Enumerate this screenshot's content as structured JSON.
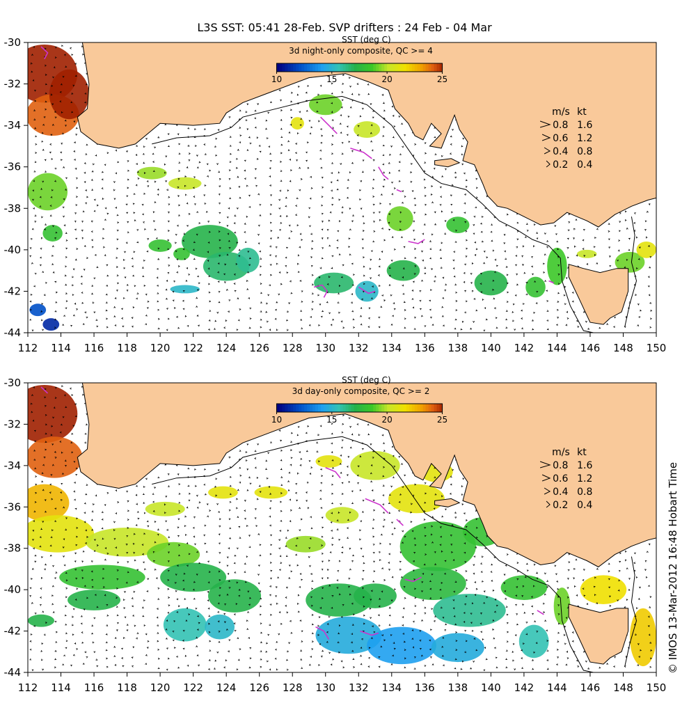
{
  "title": "L3S SST: 05:41 28-Feb. SVP drifters : 24 Feb - 04 Mar",
  "credit": "© IMOS 13-Mar-2012 16:48 Hobart Time",
  "map": {
    "lon_range": [
      112,
      150
    ],
    "lat_range": [
      -44,
      -30
    ],
    "x_ticks": [
      "112",
      "114",
      "116",
      "118",
      "120",
      "122",
      "124",
      "126",
      "128",
      "130",
      "132",
      "134",
      "136",
      "138",
      "140",
      "142",
      "144",
      "146",
      "148",
      "150"
    ],
    "y_ticks": [
      "-30",
      "-32",
      "-34",
      "-36",
      "-38",
      "-40",
      "-42",
      "-44"
    ],
    "land_color": "#f9c99a",
    "drifter_color": "#cc33cc"
  },
  "panels": [
    {
      "id": "night",
      "colorbar_title": "SST (deg C)",
      "colorbar_subtitle": "3d night-only composite, QC >= 4",
      "colorbar_ticks": [
        "10",
        "15",
        "20",
        "25"
      ],
      "speed_legend": {
        "header_ms": "m/s",
        "header_kt": "kt",
        "rows": [
          {
            "ms": "0.8",
            "kt": "1.6"
          },
          {
            "ms": "0.6",
            "kt": "1.2"
          },
          {
            "ms": "0.4",
            "kt": "0.8"
          },
          {
            "ms": "0.2",
            "kt": "0.4"
          }
        ]
      }
    },
    {
      "id": "day",
      "colorbar_title": "SST (deg C)",
      "colorbar_subtitle": "3d day-only composite, QC >= 2",
      "colorbar_ticks": [
        "10",
        "15",
        "20",
        "25"
      ],
      "speed_legend": {
        "header_ms": "m/s",
        "header_kt": "kt",
        "rows": [
          {
            "ms": "0.8",
            "kt": "1.6"
          },
          {
            "ms": "0.6",
            "kt": "1.2"
          },
          {
            "ms": "0.4",
            "kt": "0.8"
          },
          {
            "ms": "0.2",
            "kt": "0.4"
          }
        ]
      }
    }
  ]
}
